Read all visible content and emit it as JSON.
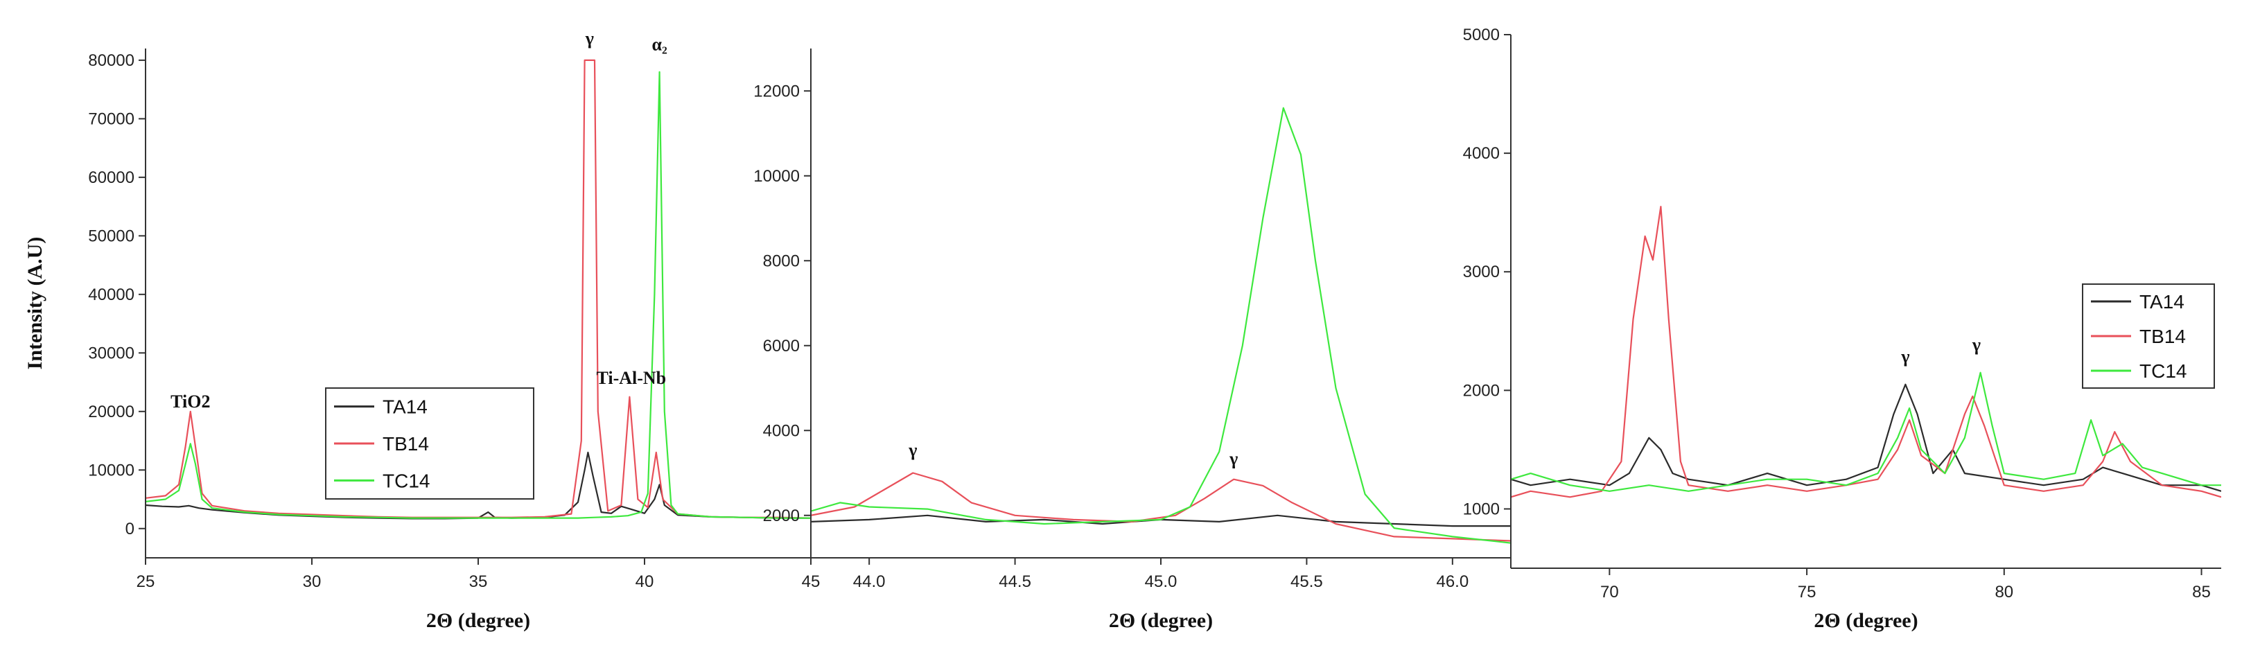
{
  "chart_data": [
    {
      "type": "line",
      "xlabel": "2Θ (degree)",
      "ylabel": "Intensity (A.U)",
      "xlim": [
        25,
        45
      ],
      "ylim": [
        -5000,
        82000
      ],
      "xticks": [
        25,
        30,
        35,
        40,
        45
      ],
      "yticks": [
        0,
        10000,
        20000,
        30000,
        40000,
        50000,
        60000,
        70000,
        80000
      ],
      "legend_position": "bottom-center",
      "series": [
        {
          "name": "TA14",
          "color": "#2b2b2b",
          "points": [
            [
              25,
              4000
            ],
            [
              25.5,
              3800
            ],
            [
              26,
              3700
            ],
            [
              26.3,
              3900
            ],
            [
              26.6,
              3500
            ],
            [
              27,
              3200
            ],
            [
              28,
              2700
            ],
            [
              29,
              2300
            ],
            [
              30,
              2100
            ],
            [
              31,
              1900
            ],
            [
              32,
              1800
            ],
            [
              33,
              1700
            ],
            [
              34,
              1700
            ],
            [
              35,
              1800
            ],
            [
              35.3,
              2800
            ],
            [
              35.5,
              1900
            ],
            [
              36,
              1800
            ],
            [
              37,
              1900
            ],
            [
              37.6,
              2300
            ],
            [
              38,
              4500
            ],
            [
              38.2,
              10000
            ],
            [
              38.3,
              13000
            ],
            [
              38.45,
              9000
            ],
            [
              38.7,
              2800
            ],
            [
              39,
              2600
            ],
            [
              39.3,
              3800
            ],
            [
              39.6,
              3300
            ],
            [
              40,
              2600
            ],
            [
              40.3,
              5000
            ],
            [
              40.45,
              7500
            ],
            [
              40.6,
              4000
            ],
            [
              41,
              2300
            ],
            [
              42,
              2000
            ],
            [
              43,
              1900
            ],
            [
              44,
              1800
            ],
            [
              45,
              1800
            ]
          ]
        },
        {
          "name": "TB14",
          "color": "#e8505a",
          "points": [
            [
              25,
              5200
            ],
            [
              25.6,
              5600
            ],
            [
              26,
              7500
            ],
            [
              26.2,
              14000
            ],
            [
              26.35,
              20000
            ],
            [
              26.5,
              14000
            ],
            [
              26.7,
              6000
            ],
            [
              27,
              3900
            ],
            [
              28,
              3000
            ],
            [
              29,
              2600
            ],
            [
              30,
              2400
            ],
            [
              31,
              2200
            ],
            [
              32,
              2000
            ],
            [
              33,
              1900
            ],
            [
              34,
              1900
            ],
            [
              35,
              1900
            ],
            [
              36,
              1900
            ],
            [
              37,
              2000
            ],
            [
              37.8,
              2500
            ],
            [
              38.1,
              15000
            ],
            [
              38.2,
              80000
            ],
            [
              38.5,
              80000
            ],
            [
              38.6,
              20000
            ],
            [
              38.9,
              3000
            ],
            [
              39.3,
              4000
            ],
            [
              39.55,
              22500
            ],
            [
              39.8,
              5000
            ],
            [
              40.1,
              3600
            ],
            [
              40.35,
              13000
            ],
            [
              40.55,
              5000
            ],
            [
              41,
              2500
            ],
            [
              42,
              2000
            ],
            [
              43,
              1900
            ],
            [
              44,
              1900
            ],
            [
              45,
              1800
            ]
          ]
        },
        {
          "name": "TC14",
          "color": "#3ee83e",
          "points": [
            [
              25,
              4600
            ],
            [
              25.6,
              5000
            ],
            [
              26,
              6500
            ],
            [
              26.2,
              11000
            ],
            [
              26.35,
              14500
            ],
            [
              26.5,
              11000
            ],
            [
              26.7,
              5000
            ],
            [
              27,
              3500
            ],
            [
              28,
              2800
            ],
            [
              29,
              2400
            ],
            [
              30,
              2200
            ],
            [
              31,
              2000
            ],
            [
              32,
              1900
            ],
            [
              33,
              1800
            ],
            [
              34,
              1800
            ],
            [
              35,
              1800
            ],
            [
              36,
              1800
            ],
            [
              37,
              1800
            ],
            [
              38,
              1800
            ],
            [
              38.5,
              1900
            ],
            [
              39,
              2000
            ],
            [
              39.5,
              2200
            ],
            [
              39.9,
              2800
            ],
            [
              40.1,
              6000
            ],
            [
              40.3,
              40000
            ],
            [
              40.45,
              78000
            ],
            [
              40.6,
              20000
            ],
            [
              40.8,
              4000
            ],
            [
              41,
              2500
            ],
            [
              42,
              2000
            ],
            [
              43,
              1900
            ],
            [
              44,
              1800
            ],
            [
              45,
              1800
            ]
          ]
        }
      ],
      "annotations": [
        {
          "text": "TiO2",
          "x": 26.35,
          "y": 20000
        },
        {
          "text": "γ",
          "x": 38.35,
          "y": 82000
        },
        {
          "text": "Ti-Al-Nb",
          "x": 39.6,
          "y": 24000
        },
        {
          "text": "α₂",
          "x": 40.45,
          "y": 81000
        }
      ]
    },
    {
      "type": "line",
      "xlabel": "2Θ (degree)",
      "ylabel": "",
      "xlim": [
        43.8,
        46.2
      ],
      "ylim": [
        1000,
        13000
      ],
      "xticks": [
        44.0,
        44.5,
        45.0,
        45.5,
        46.0
      ],
      "xticklabels": [
        "44.0",
        "44.5",
        "45.0",
        "45.5",
        "46.0"
      ],
      "yticks": [
        2000,
        4000,
        6000,
        8000,
        10000,
        12000
      ],
      "series": [
        {
          "name": "TA14",
          "color": "#2b2b2b",
          "points": [
            [
              43.8,
              1850
            ],
            [
              44,
              1900
            ],
            [
              44.2,
              2000
            ],
            [
              44.4,
              1850
            ],
            [
              44.6,
              1900
            ],
            [
              44.8,
              1800
            ],
            [
              45,
              1900
            ],
            [
              45.2,
              1850
            ],
            [
              45.4,
              2000
            ],
            [
              45.6,
              1850
            ],
            [
              45.8,
              1800
            ],
            [
              46,
              1750
            ],
            [
              46.2,
              1750
            ]
          ]
        },
        {
          "name": "TB14",
          "color": "#e8505a",
          "points": [
            [
              43.8,
              2000
            ],
            [
              43.95,
              2200
            ],
            [
              44.05,
              2600
            ],
            [
              44.15,
              3000
            ],
            [
              44.25,
              2800
            ],
            [
              44.35,
              2300
            ],
            [
              44.5,
              2000
            ],
            [
              44.7,
              1900
            ],
            [
              44.9,
              1850
            ],
            [
              45.05,
              2000
            ],
            [
              45.15,
              2400
            ],
            [
              45.25,
              2850
            ],
            [
              45.35,
              2700
            ],
            [
              45.45,
              2300
            ],
            [
              45.6,
              1800
            ],
            [
              45.8,
              1500
            ],
            [
              46,
              1450
            ],
            [
              46.2,
              1400
            ]
          ]
        },
        {
          "name": "TC14",
          "color": "#3ee83e",
          "points": [
            [
              43.8,
              2100
            ],
            [
              43.9,
              2300
            ],
            [
              44,
              2200
            ],
            [
              44.2,
              2150
            ],
            [
              44.4,
              1900
            ],
            [
              44.6,
              1800
            ],
            [
              44.8,
              1850
            ],
            [
              45,
              1900
            ],
            [
              45.1,
              2200
            ],
            [
              45.2,
              3500
            ],
            [
              45.28,
              6000
            ],
            [
              45.35,
              9000
            ],
            [
              45.42,
              11600
            ],
            [
              45.48,
              10500
            ],
            [
              45.53,
              8000
            ],
            [
              45.6,
              5000
            ],
            [
              45.7,
              2500
            ],
            [
              45.8,
              1700
            ],
            [
              46,
              1500
            ],
            [
              46.2,
              1350
            ]
          ]
        }
      ],
      "annotations": [
        {
          "text": "γ",
          "x": 44.15,
          "y": 3300
        },
        {
          "text": "γ",
          "x": 45.25,
          "y": 3100
        }
      ]
    },
    {
      "type": "line",
      "xlabel": "2Θ (degree)",
      "ylabel": "",
      "xlim": [
        67.5,
        85.5
      ],
      "ylim": [
        500,
        5000
      ],
      "xticks": [
        70,
        75,
        80,
        85
      ],
      "yticks": [
        1000,
        2000,
        3000,
        4000,
        5000
      ],
      "legend_position": "top-right",
      "series": [
        {
          "name": "TA14",
          "color": "#2b2b2b",
          "points": [
            [
              67.5,
              1250
            ],
            [
              68,
              1200
            ],
            [
              69,
              1250
            ],
            [
              70,
              1200
            ],
            [
              70.5,
              1300
            ],
            [
              71,
              1600
            ],
            [
              71.3,
              1500
            ],
            [
              71.6,
              1300
            ],
            [
              72,
              1250
            ],
            [
              73,
              1200
            ],
            [
              74,
              1300
            ],
            [
              75,
              1200
            ],
            [
              76,
              1250
            ],
            [
              76.8,
              1350
            ],
            [
              77.2,
              1800
            ],
            [
              77.5,
              2050
            ],
            [
              77.8,
              1800
            ],
            [
              78.2,
              1300
            ],
            [
              78.7,
              1500
            ],
            [
              79,
              1300
            ],
            [
              80,
              1250
            ],
            [
              81,
              1200
            ],
            [
              82,
              1250
            ],
            [
              82.5,
              1350
            ],
            [
              83,
              1300
            ],
            [
              84,
              1200
            ],
            [
              85,
              1200
            ],
            [
              85.5,
              1150
            ]
          ]
        },
        {
          "name": "TB14",
          "color": "#e8505a",
          "points": [
            [
              67.5,
              1100
            ],
            [
              68,
              1150
            ],
            [
              69,
              1100
            ],
            [
              69.8,
              1150
            ],
            [
              70.3,
              1400
            ],
            [
              70.6,
              2600
            ],
            [
              70.9,
              3300
            ],
            [
              71.1,
              3100
            ],
            [
              71.3,
              3550
            ],
            [
              71.5,
              2600
            ],
            [
              71.8,
              1400
            ],
            [
              72,
              1200
            ],
            [
              73,
              1150
            ],
            [
              74,
              1200
            ],
            [
              75,
              1150
            ],
            [
              76,
              1200
            ],
            [
              76.8,
              1250
            ],
            [
              77.3,
              1500
            ],
            [
              77.6,
              1750
            ],
            [
              77.9,
              1450
            ],
            [
              78.5,
              1300
            ],
            [
              79,
              1800
            ],
            [
              79.2,
              1950
            ],
            [
              79.5,
              1700
            ],
            [
              80,
              1200
            ],
            [
              81,
              1150
            ],
            [
              82,
              1200
            ],
            [
              82.5,
              1400
            ],
            [
              82.8,
              1650
            ],
            [
              83.2,
              1400
            ],
            [
              84,
              1200
            ],
            [
              85,
              1150
            ],
            [
              85.5,
              1100
            ]
          ]
        },
        {
          "name": "TC14",
          "color": "#3ee83e",
          "points": [
            [
              67.5,
              1250
            ],
            [
              68,
              1300
            ],
            [
              69,
              1200
            ],
            [
              70,
              1150
            ],
            [
              71,
              1200
            ],
            [
              72,
              1150
            ],
            [
              73,
              1200
            ],
            [
              74,
              1250
            ],
            [
              75,
              1250
            ],
            [
              76,
              1200
            ],
            [
              76.8,
              1300
            ],
            [
              77.3,
              1600
            ],
            [
              77.6,
              1850
            ],
            [
              77.9,
              1500
            ],
            [
              78.5,
              1300
            ],
            [
              79,
              1600
            ],
            [
              79.4,
              2150
            ],
            [
              79.7,
              1700
            ],
            [
              80,
              1300
            ],
            [
              81,
              1250
            ],
            [
              81.8,
              1300
            ],
            [
              82.2,
              1750
            ],
            [
              82.5,
              1450
            ],
            [
              83,
              1550
            ],
            [
              83.5,
              1350
            ],
            [
              84,
              1300
            ],
            [
              85,
              1200
            ],
            [
              85.5,
              1200
            ]
          ]
        }
      ],
      "annotations": [
        {
          "text": "γ",
          "x": 77.5,
          "y": 2200
        },
        {
          "text": "γ",
          "x": 79.3,
          "y": 2300
        }
      ]
    }
  ]
}
